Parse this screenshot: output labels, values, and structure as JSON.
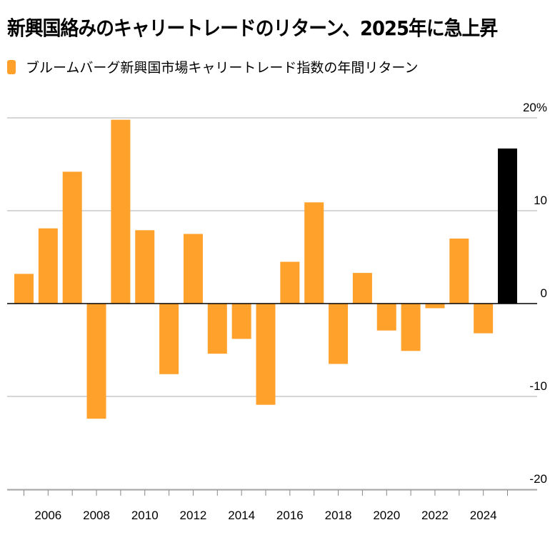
{
  "chart_data": {
    "type": "bar",
    "title": "新興国絡みのキャリートレードのリターン、2025年に急上昇",
    "legend": [
      {
        "label": "ブルームバーグ新興国市場キャリートレード指数の年間リターン",
        "color": "#ffa12b"
      }
    ],
    "legend_placement": "top-left",
    "categories": [
      2005,
      2006,
      2007,
      2008,
      2009,
      2010,
      2011,
      2012,
      2013,
      2014,
      2015,
      2016,
      2017,
      2018,
      2019,
      2020,
      2021,
      2022,
      2023,
      2024,
      2025
    ],
    "values": [
      3.2,
      8.1,
      14.2,
      -12.4,
      19.8,
      7.9,
      -7.6,
      7.5,
      -5.4,
      -3.8,
      -10.9,
      4.5,
      10.9,
      -6.5,
      3.3,
      -2.9,
      -5.1,
      -0.5,
      7.0,
      -3.2,
      16.7
    ],
    "colors": {
      "default": "#ffa12b",
      "highlight": "#000000"
    },
    "highlight_category": 2025,
    "ylim": [
      -20,
      20
    ],
    "y_ticks": [
      {
        "value": 20,
        "label": "20%"
      },
      {
        "value": 10,
        "label": "10"
      },
      {
        "value": 0,
        "label": "0"
      },
      {
        "value": -10,
        "label": "-10"
      },
      {
        "value": -20,
        "label": "-20"
      }
    ],
    "x_tick_labels": [
      "2006",
      "2008",
      "2010",
      "2012",
      "2014",
      "2016",
      "2018",
      "2020",
      "2022",
      "2024"
    ],
    "y_axis_position": "right",
    "grid": true
  }
}
